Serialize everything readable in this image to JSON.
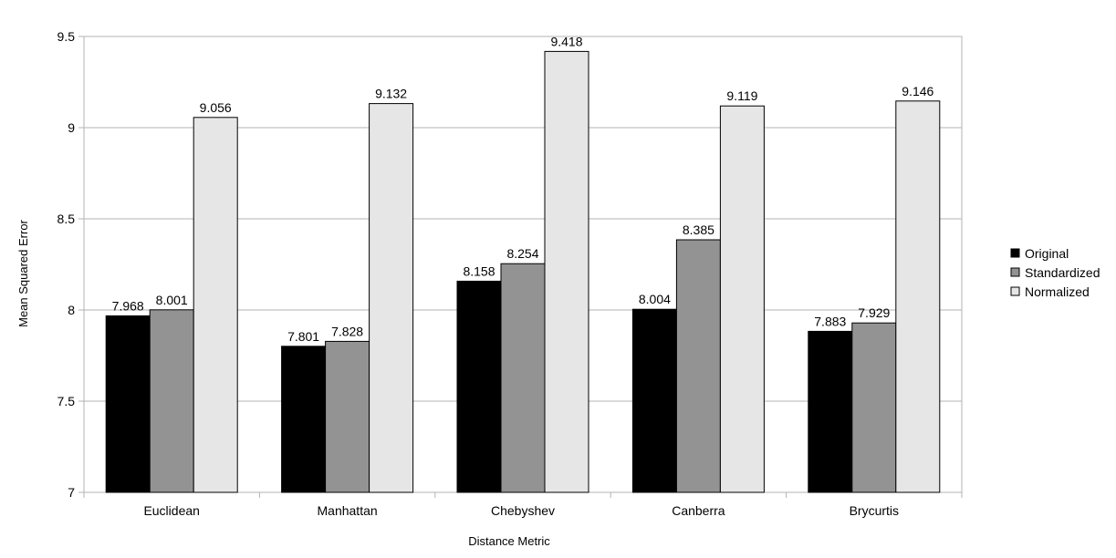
{
  "chart_data": {
    "type": "bar",
    "title": "",
    "xlabel": "Distance Metric",
    "ylabel": "Mean Squared Error",
    "ylim": [
      7,
      9.5
    ],
    "yticks": [
      7,
      7.5,
      8,
      8.5,
      9,
      9.5
    ],
    "ytick_labels": [
      "7",
      "7.5",
      "8",
      "8.5",
      "9",
      "9.5"
    ],
    "grid": true,
    "legend_position": "right",
    "categories": [
      "Euclidean",
      "Manhattan",
      "Chebyshev",
      "Canberra",
      "Brycurtis"
    ],
    "series": [
      {
        "name": "Original",
        "color": "#000000",
        "values": [
          7.968,
          7.801,
          8.158,
          8.004,
          7.883
        ],
        "labels": [
          "7.968",
          "7.801",
          "8.158",
          "8.004",
          "7.883"
        ]
      },
      {
        "name": "Standardized",
        "color": "#939393",
        "values": [
          8.001,
          7.828,
          8.254,
          8.385,
          7.929
        ],
        "labels": [
          "8.001",
          "7.828",
          "8.254",
          "8.385",
          "7.929"
        ]
      },
      {
        "name": "Normalized",
        "color": "#e6e6e6",
        "values": [
          9.056,
          9.132,
          9.418,
          9.119,
          9.146
        ],
        "labels": [
          "9.056",
          "9.132",
          "9.418",
          "9.119",
          "9.146"
        ]
      }
    ]
  }
}
